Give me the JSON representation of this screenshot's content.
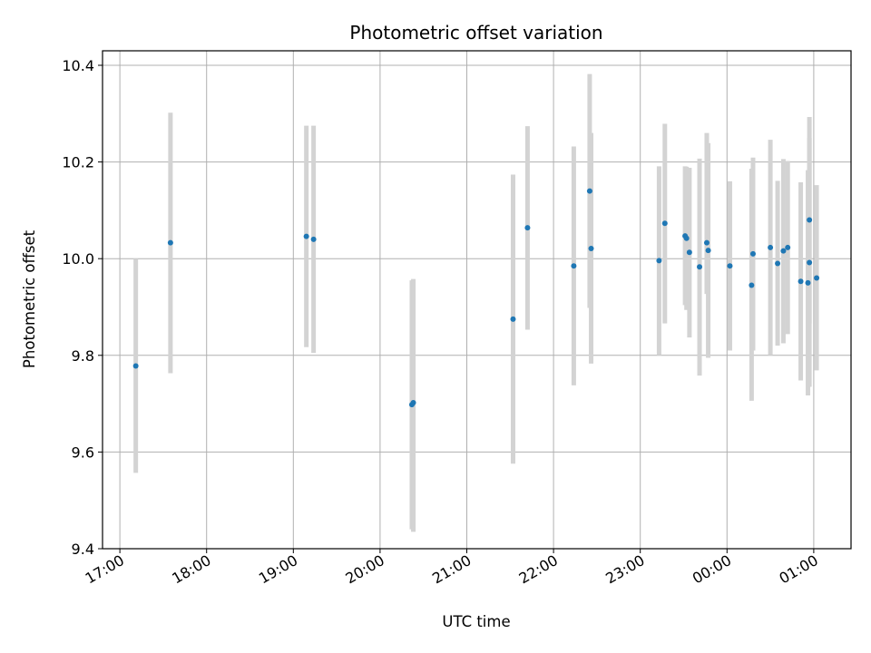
{
  "chart_data": {
    "type": "scatter",
    "title": "Photometric offset variation",
    "xlabel": "UTC time",
    "ylabel": "Photometric offset",
    "x_axis_kind": "time",
    "x_tick_labels": [
      "17:00",
      "18:00",
      "19:00",
      "20:00",
      "21:00",
      "22:00",
      "23:00",
      "00:00",
      "01:00"
    ],
    "x_tick_hours": [
      17,
      18,
      19,
      20,
      21,
      22,
      23,
      24,
      25
    ],
    "xlim_hours": [
      16.8,
      25.43
    ],
    "ylim": [
      9.4,
      10.43
    ],
    "y_ticks": [
      9.4,
      9.6,
      9.8,
      10.0,
      10.2,
      10.4
    ],
    "y_tick_labels": [
      "9.4",
      "9.6",
      "9.8",
      "10.0",
      "10.2",
      "10.4"
    ],
    "grid": true,
    "marker_color": "#1f77b4",
    "errorbar_color": "#d3d3d3",
    "points": [
      {
        "t": "17:11",
        "y": 9.778,
        "lo": 9.557,
        "hi": 10.0
      },
      {
        "t": "17:35",
        "y": 10.033,
        "lo": 9.763,
        "hi": 10.302
      },
      {
        "t": "19:09",
        "y": 10.046,
        "lo": 9.817,
        "hi": 10.275
      },
      {
        "t": "19:14",
        "y": 10.04,
        "lo": 9.805,
        "hi": 10.275
      },
      {
        "t": "20:22",
        "y": 9.698,
        "lo": 9.44,
        "hi": 9.955
      },
      {
        "t": "20:23",
        "y": 9.702,
        "lo": 9.435,
        "hi": 9.958
      },
      {
        "t": "21:32",
        "y": 9.875,
        "lo": 9.576,
        "hi": 10.174
      },
      {
        "t": "21:42",
        "y": 10.064,
        "lo": 9.853,
        "hi": 10.274
      },
      {
        "t": "22:14",
        "y": 9.985,
        "lo": 9.738,
        "hi": 10.232
      },
      {
        "t": "22:25",
        "y": 10.14,
        "lo": 9.898,
        "hi": 10.382
      },
      {
        "t": "22:26",
        "y": 10.021,
        "lo": 9.783,
        "hi": 10.26
      },
      {
        "t": "23:13",
        "y": 9.996,
        "lo": 9.8,
        "hi": 10.191
      },
      {
        "t": "23:17",
        "y": 10.073,
        "lo": 9.866,
        "hi": 10.279
      },
      {
        "t": "23:31",
        "y": 10.047,
        "lo": 9.904,
        "hi": 10.191
      },
      {
        "t": "23:32",
        "y": 10.042,
        "lo": 9.894,
        "hi": 10.19
      },
      {
        "t": "23:34",
        "y": 10.013,
        "lo": 9.837,
        "hi": 10.188
      },
      {
        "t": "23:41",
        "y": 9.983,
        "lo": 9.758,
        "hi": 10.207
      },
      {
        "t": "23:46",
        "y": 10.033,
        "lo": 9.927,
        "hi": 10.26
      },
      {
        "t": "23:47",
        "y": 10.017,
        "lo": 9.795,
        "hi": 10.239
      },
      {
        "t": "00:02",
        "y": 9.985,
        "lo": 9.81,
        "hi": 10.16
      },
      {
        "t": "00:17",
        "y": 9.945,
        "lo": 9.706,
        "hi": 10.186
      },
      {
        "t": "00:18",
        "y": 10.01,
        "lo": 9.81,
        "hi": 10.209
      },
      {
        "t": "00:30",
        "y": 10.023,
        "lo": 9.8,
        "hi": 10.246
      },
      {
        "t": "00:35",
        "y": 9.99,
        "lo": 9.82,
        "hi": 10.161
      },
      {
        "t": "00:39",
        "y": 10.016,
        "lo": 9.825,
        "hi": 10.206
      },
      {
        "t": "00:42",
        "y": 10.023,
        "lo": 9.844,
        "hi": 10.202
      },
      {
        "t": "00:51",
        "y": 9.953,
        "lo": 9.748,
        "hi": 10.158
      },
      {
        "t": "00:56",
        "y": 9.95,
        "lo": 9.717,
        "hi": 10.183
      },
      {
        "t": "00:57",
        "y": 10.08,
        "lo": 9.866,
        "hi": 10.293
      },
      {
        "t": "00:57",
        "y": 9.992,
        "lo": 9.735,
        "hi": 10.25
      },
      {
        "t": "01:02",
        "y": 9.96,
        "lo": 9.769,
        "hi": 10.152
      }
    ]
  }
}
